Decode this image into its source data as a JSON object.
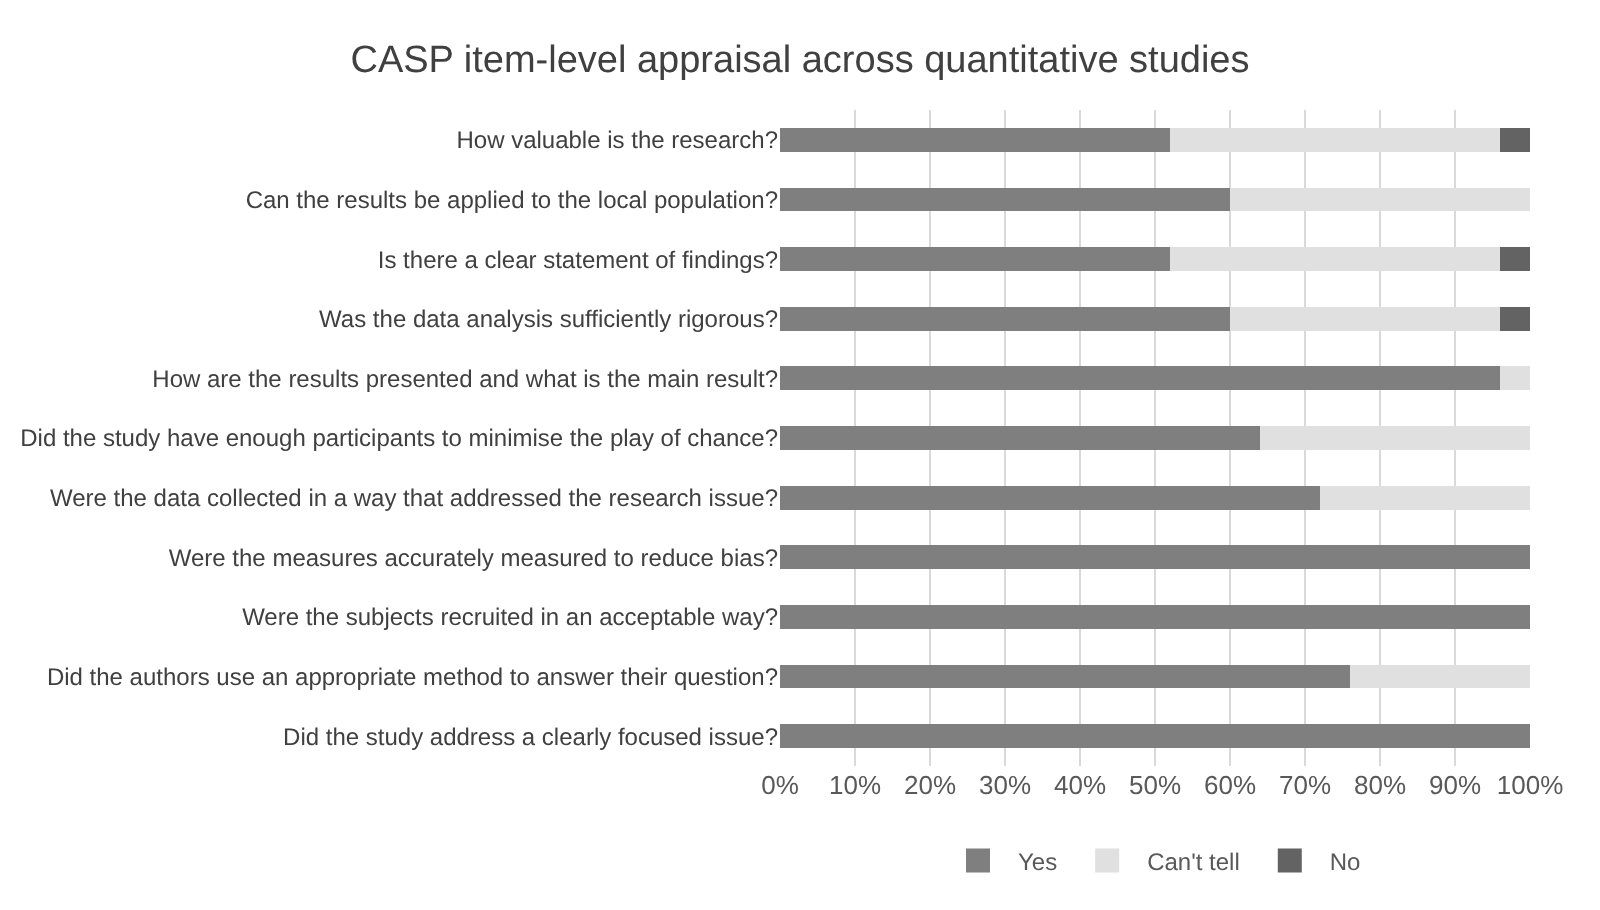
{
  "chart_data": {
    "type": "bar",
    "orientation": "horizontal",
    "stacked": true,
    "title": "CASP item-level appraisal across quantitative studies",
    "categories": [
      "How valuable is the research?",
      "Can the results be applied to the local population?",
      "Is there a clear statement of findings?",
      "Was the data analysis sufficiently rigorous?",
      "How are the results presented and what is the main result?",
      "Did the study have enough participants to minimise the play of chance?",
      "Were the data collected in a way that addressed the research issue?",
      "Were the measures accurately measured to reduce bias?",
      "Were the subjects recruited in an acceptable way?",
      "Did the authors use an appropriate method to answer their question?",
      "Did the study address a clearly focused issue?"
    ],
    "series": [
      {
        "name": "Yes",
        "color": "#7f7f7f",
        "values": [
          52,
          60,
          52,
          60,
          96,
          64,
          72,
          100,
          100,
          76,
          100
        ]
      },
      {
        "name": "Can't tell",
        "color": "#e0e0e0",
        "values": [
          44,
          40,
          44,
          36,
          4,
          36,
          28,
          0,
          0,
          24,
          0
        ]
      },
      {
        "name": "No",
        "color": "#636363",
        "values": [
          4,
          0,
          4,
          4,
          0,
          0,
          0,
          0,
          0,
          0,
          0
        ]
      }
    ],
    "xlim": [
      0,
      100
    ],
    "xticks": [
      {
        "value": 0,
        "label": "0%"
      },
      {
        "value": 10,
        "label": "10%"
      },
      {
        "value": 20,
        "label": "20%"
      },
      {
        "value": 30,
        "label": "30%"
      },
      {
        "value": 40,
        "label": "40%"
      },
      {
        "value": 50,
        "label": "50%"
      },
      {
        "value": 60,
        "label": "60%"
      },
      {
        "value": 70,
        "label": "70%"
      },
      {
        "value": 80,
        "label": "80%"
      },
      {
        "value": 90,
        "label": "90%"
      },
      {
        "value": 100,
        "label": "100%"
      }
    ],
    "grid": "x",
    "legend": "bottom"
  }
}
